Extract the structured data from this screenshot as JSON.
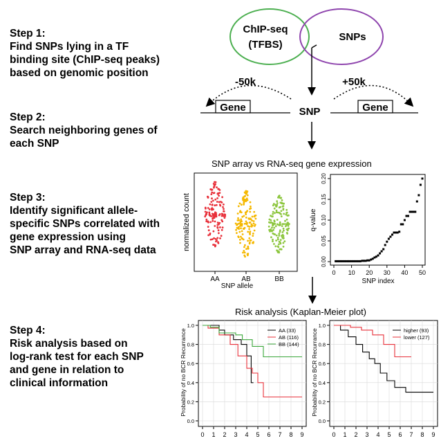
{
  "steps": [
    {
      "heading": "Step 1:",
      "lines": [
        "Find SNPs lying in a TF",
        "binding site (ChIP-seq peaks)",
        "based on genomic position"
      ]
    },
    {
      "heading": "Step 2:",
      "lines": [
        "Search neighboring genes of",
        "each SNP"
      ]
    },
    {
      "heading": "Step 3:",
      "lines": [
        "Identify significant allele-",
        "specific SNPs correlated with",
        "gene expression using",
        "SNP array and RNA-seq data"
      ]
    },
    {
      "heading": "Step 4:",
      "lines": [
        "Risk analysis based on",
        "log-rank test for each SNP",
        "and gene in relation to",
        "clinical information"
      ]
    }
  ],
  "venn": {
    "left_line1": "ChIP-seq",
    "left_line2": "(TFBS)",
    "right": "SNPs",
    "left_color": "#4caf50",
    "right_color": "#8e44ad"
  },
  "neighbor": {
    "minus": "-50k",
    "plus": "+50k",
    "gene_left": "Gene",
    "gene_right": "Gene",
    "snp": "SNP"
  },
  "array_panel": {
    "title": "SNP array vs RNA-seq gene expression",
    "beeswarm": {
      "ylabel": "normalized count",
      "xlabel": "SNP allele",
      "groups": [
        {
          "label": "AA",
          "color": "#e8303a"
        },
        {
          "label": "AB",
          "color": "#f5b800"
        },
        {
          "label": "BB",
          "color": "#8dc63f"
        }
      ]
    },
    "qplot": {
      "ylabel": "q-value",
      "xlabel": "SNP index",
      "xticks": [
        "0",
        "10",
        "20",
        "30",
        "40",
        "50"
      ],
      "yticks": [
        "0.00",
        "0.05",
        "0.10",
        "0.15",
        "0.20"
      ]
    }
  },
  "km_panel": {
    "title": "Risk analysis (Kaplan-Meier plot)",
    "ylabel": "Probability of no BCR Recurrance",
    "yticks": [
      "0.0",
      "0.2",
      "0.4",
      "0.6",
      "0.8",
      "1.0"
    ],
    "xticks": [
      "0",
      "1",
      "2",
      "3",
      "4",
      "5",
      "6",
      "7",
      "8",
      "9"
    ],
    "left_legend": [
      {
        "label": "AA (33)",
        "color": "#000000"
      },
      {
        "label": "AB (116)",
        "color": "#e8303a"
      },
      {
        "label": "BB (144)",
        "color": "#3aa63a"
      }
    ],
    "right_legend": [
      {
        "label": "higher (93)",
        "color": "#000000"
      },
      {
        "label": "lower (127)",
        "color": "#e8303a"
      }
    ]
  },
  "chart_data": [
    {
      "type": "scatter",
      "title": "",
      "xlabel": "SNP index",
      "ylabel": "q-value",
      "xlim": [
        0,
        50
      ],
      "ylim": [
        0,
        0.2
      ],
      "x": [
        1,
        2,
        3,
        4,
        5,
        6,
        7,
        8,
        9,
        10,
        11,
        12,
        13,
        14,
        15,
        16,
        17,
        18,
        19,
        20,
        21,
        22,
        23,
        24,
        25,
        26,
        27,
        28,
        29,
        30,
        31,
        32,
        33,
        34,
        35,
        36,
        37,
        38,
        39,
        40,
        41,
        42,
        43,
        44,
        45,
        46,
        47,
        48,
        49,
        50
      ],
      "y": [
        0.001,
        0.001,
        0.001,
        0.001,
        0.001,
        0.001,
        0.001,
        0.001,
        0.001,
        0.001,
        0.001,
        0.001,
        0.001,
        0.001,
        0.001,
        0.002,
        0.002,
        0.002,
        0.003,
        0.003,
        0.005,
        0.007,
        0.01,
        0.012,
        0.015,
        0.02,
        0.025,
        0.03,
        0.04,
        0.048,
        0.055,
        0.06,
        0.065,
        0.07,
        0.07,
        0.07,
        0.072,
        0.09,
        0.09,
        0.1,
        0.11,
        0.11,
        0.12,
        0.12,
        0.12,
        0.12,
        0.145,
        0.16,
        0.185,
        0.2
      ]
    },
    {
      "type": "line",
      "title": "",
      "ylabel": "Probability of no BCR Recurrance",
      "xlim": [
        0,
        9
      ],
      "ylim": [
        0,
        1
      ],
      "series": [
        {
          "name": "AA (33)",
          "x": [
            0,
            1.5,
            2,
            2.8,
            3.5,
            4,
            4.4,
            4.6
          ],
          "y": [
            1,
            0.95,
            0.9,
            0.85,
            0.8,
            0.68,
            0.4,
            0.4
          ]
        },
        {
          "name": "AB (116)",
          "x": [
            0,
            0.5,
            1.5,
            2.5,
            3.2,
            4,
            4.5,
            5,
            5.5,
            6,
            9
          ],
          "y": [
            1,
            0.97,
            0.9,
            0.8,
            0.68,
            0.55,
            0.5,
            0.4,
            0.25,
            0.25,
            0.25
          ]
        },
        {
          "name": "BB (144)",
          "x": [
            0,
            0.7,
            1.5,
            3,
            3.6,
            4.5,
            5.5,
            9
          ],
          "y": [
            1,
            0.98,
            0.92,
            0.9,
            0.85,
            0.78,
            0.67,
            0.67
          ]
        }
      ]
    },
    {
      "type": "line",
      "title": "",
      "ylabel": "Probability of no BCR Recurrance",
      "xlim": [
        0,
        9
      ],
      "ylim": [
        0,
        1
      ],
      "series": [
        {
          "name": "higher (93)",
          "x": [
            0,
            0.6,
            1.3,
            2,
            2.6,
            3.2,
            3.7,
            4.2,
            4.8,
            5.5,
            6.5,
            9
          ],
          "y": [
            1,
            0.95,
            0.88,
            0.8,
            0.72,
            0.65,
            0.6,
            0.5,
            0.42,
            0.35,
            0.3,
            0.3
          ]
        },
        {
          "name": "lower (127)",
          "x": [
            0,
            1.5,
            2.5,
            3.5,
            4.5,
            5.5,
            7
          ],
          "y": [
            1,
            0.98,
            0.95,
            0.9,
            0.8,
            0.67,
            0.67
          ]
        }
      ]
    }
  ]
}
